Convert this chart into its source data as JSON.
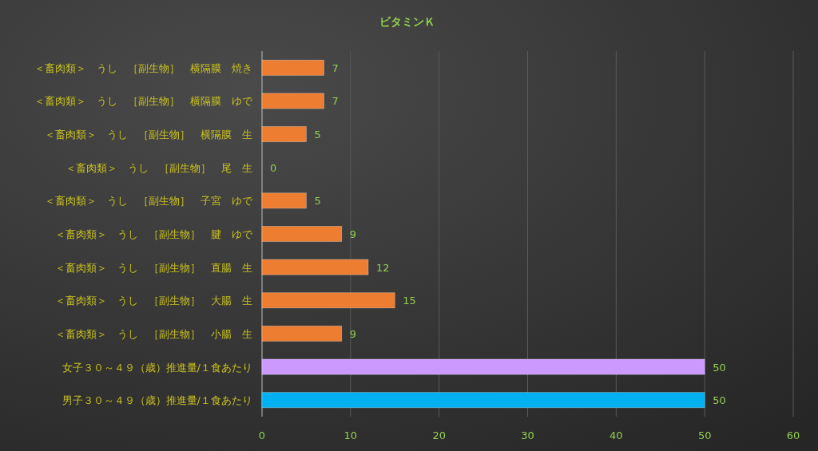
{
  "chart_data": {
    "type": "bar",
    "orientation": "horizontal",
    "title": "ビタミンＫ",
    "categories": [
      "＜畜肉類＞　うし　［副生物］　横隔膜　焼き",
      "＜畜肉類＞　うし　［副生物］　横隔膜　ゆで",
      "＜畜肉類＞　うし　［副生物］　横隔膜　生",
      "＜畜肉類＞　うし　［副生物］　尾　生",
      "＜畜肉類＞　うし　［副生物］　子宮　ゆで",
      "＜畜肉類＞　うし　［副生物］　腱　ゆで",
      "＜畜肉類＞　うし　［副生物］　直腸　生",
      "＜畜肉類＞　うし　［副生物］　大腸　生",
      "＜畜肉類＞　うし　［副生物］　小腸　生",
      "女子３０～４９（歳）推進量/１食あたり",
      "男子３０～４９（歳）推進量/１食あたり"
    ],
    "values": [
      7,
      7,
      5,
      0,
      5,
      9,
      12,
      15,
      9,
      50,
      50
    ],
    "colors": [
      "#ed7d31",
      "#ed7d31",
      "#ed7d31",
      "#ed7d31",
      "#ed7d31",
      "#ed7d31",
      "#ed7d31",
      "#ed7d31",
      "#ed7d31",
      "#cc99ff",
      "#00b0f0"
    ],
    "xlim": [
      0,
      60
    ],
    "xticks": [
      0,
      10,
      20,
      30,
      40,
      50,
      60
    ],
    "grid": "x",
    "data_labels": true
  }
}
